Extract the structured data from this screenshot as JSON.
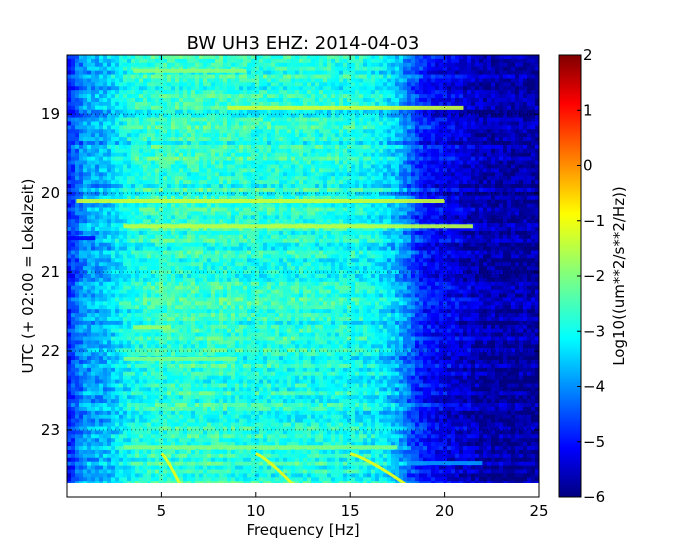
{
  "chart_data": {
    "type": "heatmap",
    "title": "BW UH3 EHZ: 2014-04-03",
    "xlabel": "Frequency [Hz]",
    "ylabel": "UTC (+ 02:00 = Lokalzeit)",
    "xlim": [
      0,
      25
    ],
    "ylim_hours_utc": [
      18.25,
      23.85
    ],
    "y_inverted": true,
    "x_ticks": [
      5,
      10,
      15,
      20,
      25
    ],
    "x_tick_labels": [
      "5",
      "10",
      "15",
      "20",
      "25"
    ],
    "y_ticks": [
      19,
      20,
      21,
      22,
      23
    ],
    "y_tick_labels": [
      "19",
      "20",
      "21",
      "22",
      "23"
    ],
    "grid": true,
    "colormap": "jet",
    "colorbar": {
      "label": "Log10((um**2/s**2/Hz))",
      "range": [
        -6,
        2
      ],
      "ticks": [
        2,
        1,
        0,
        -1,
        -2,
        -3,
        -4,
        -5,
        -6
      ],
      "tick_labels": [
        "2",
        "1",
        "0",
        "−1",
        "−2",
        "−3",
        "−4",
        "−5",
        "−6"
      ]
    },
    "data_end_hour": 23.7,
    "spectral_profile": {
      "frequency_hz": [
        0,
        0.5,
        1.0,
        2.0,
        3.0,
        4.0,
        5.0,
        8.0,
        10.0,
        12.0,
        15.0,
        16.5,
        17.5,
        18.0,
        18.5,
        19.0,
        20.0,
        21.0,
        22.0,
        25.0
      ],
      "log10_psd": [
        -4.8,
        -4.2,
        -3.7,
        -3.5,
        -3.0,
        -2.7,
        -2.6,
        -2.6,
        -2.7,
        -2.7,
        -2.8,
        -3.0,
        -3.5,
        -4.0,
        -4.5,
        -4.8,
        -5.1,
        -5.3,
        -5.6,
        -5.7
      ]
    },
    "horizontal_bands": [
      {
        "hour": 18.92,
        "fmin": 8.5,
        "fmax": 21.0,
        "log10_psd": -1.4
      },
      {
        "hour": 20.1,
        "fmin": 0.5,
        "fmax": 20.0,
        "log10_psd": -1.4
      },
      {
        "hour": 20.42,
        "fmin": 3.0,
        "fmax": 21.5,
        "log10_psd": -1.5
      },
      {
        "hour": 20.57,
        "fmin": 0.0,
        "fmax": 1.5,
        "log10_psd": -5.0
      },
      {
        "hour": 18.45,
        "fmin": 3.5,
        "fmax": 9.5,
        "log10_psd": -1.9
      },
      {
        "hour": 21.7,
        "fmin": 3.5,
        "fmax": 5.5,
        "log10_psd": -1.8
      },
      {
        "hour": 22.1,
        "fmin": 3.0,
        "fmax": 9.0,
        "log10_psd": -2.0
      },
      {
        "hour": 23.22,
        "fmin": 3.0,
        "fmax": 17.5,
        "log10_psd": -2.0
      },
      {
        "hour": 23.42,
        "fmin": 18.0,
        "fmax": 22.0,
        "log10_psd": -3.8
      }
    ],
    "sweep_traces": [
      {
        "f_start": 5.0,
        "f_end": 6.0,
        "h_start": 23.3,
        "h_end": 23.7,
        "log10_psd": -1.3
      },
      {
        "f_start": 10.0,
        "f_end": 12.0,
        "h_start": 23.3,
        "h_end": 23.7,
        "log10_psd": -1.3
      },
      {
        "f_start": 15.0,
        "f_end": 18.0,
        "h_start": 23.3,
        "h_end": 23.7,
        "log10_psd": -1.3
      }
    ]
  }
}
